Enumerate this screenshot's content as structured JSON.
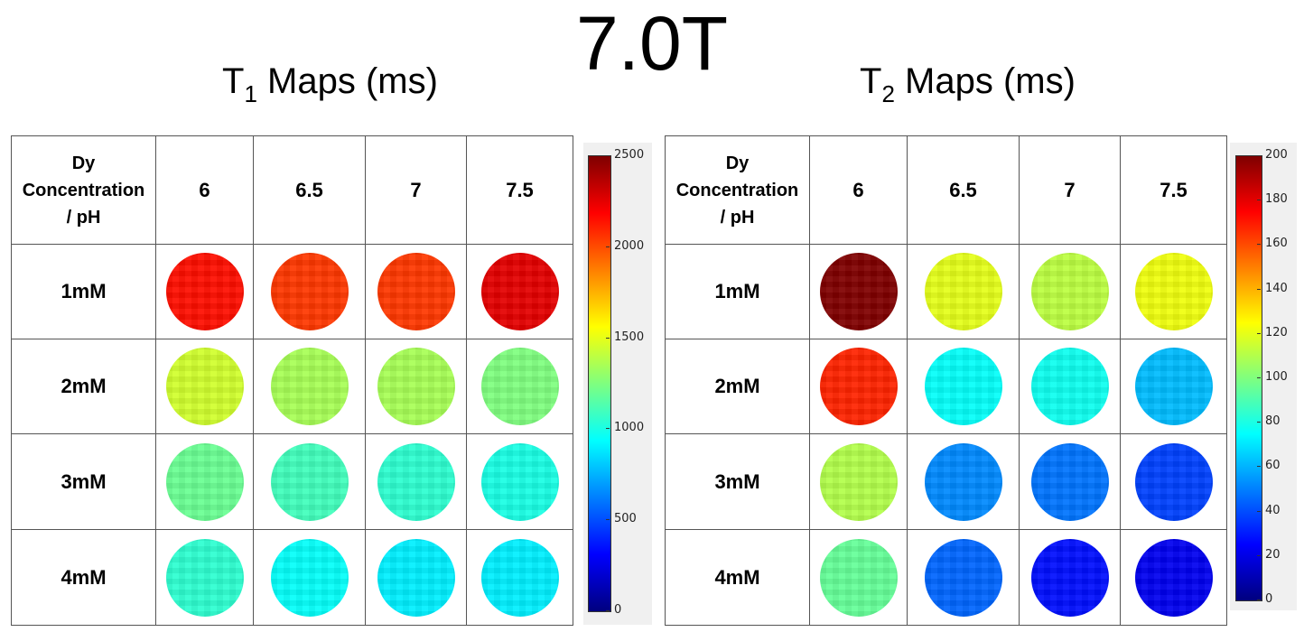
{
  "main_title": "7.0T",
  "chart_data": [
    {
      "type": "heatmap",
      "title": "T1 Maps (ms)",
      "title_main": "T",
      "title_sub": "1",
      "title_rest": " Maps (ms)",
      "corner_label": [
        "Dy",
        "Concentration",
        "/ pH"
      ],
      "columns": [
        "6",
        "6.5",
        "7",
        "7.5"
      ],
      "rows": [
        "1mM",
        "2mM",
        "3mM",
        "4mM"
      ],
      "values": [
        [
          2150,
          2050,
          2050,
          2250
        ],
        [
          1450,
          1350,
          1350,
          1250
        ],
        [
          1200,
          1100,
          1050,
          1000
        ],
        [
          1050,
          950,
          900,
          900
        ]
      ],
      "colorbar": {
        "min": 0,
        "max": 2500,
        "ticks": [
          "0",
          "500",
          "1000",
          "1500",
          "2000",
          "2500"
        ]
      }
    },
    {
      "type": "heatmap",
      "title": "T2 Maps (ms)",
      "title_main": "T",
      "title_sub": "2",
      "title_rest": " Maps (ms)",
      "corner_label": [
        "Dy",
        "Concentration",
        "/ pH"
      ],
      "columns": [
        "6",
        "6.5",
        "7",
        "7.5"
      ],
      "rows": [
        "1mM",
        "2mM",
        "3mM",
        "4mM"
      ],
      "values": [
        [
          200,
          120,
          112,
          122
        ],
        [
          168,
          76,
          78,
          62
        ],
        [
          110,
          52,
          48,
          38
        ],
        [
          95,
          45,
          28,
          22
        ]
      ],
      "colorbar": {
        "min": 0,
        "max": 200,
        "ticks": [
          "0",
          "20",
          "40",
          "60",
          "80",
          "100",
          "120",
          "140",
          "160",
          "180",
          "200"
        ]
      }
    }
  ]
}
